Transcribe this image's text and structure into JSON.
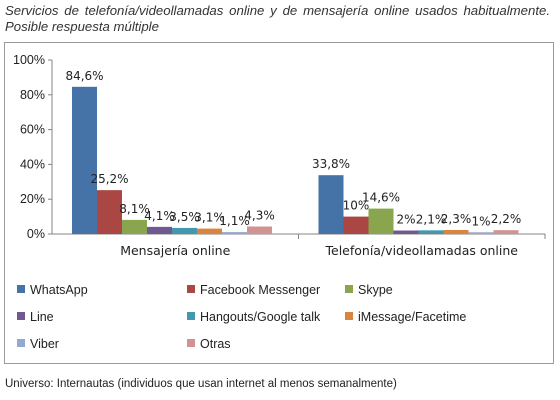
{
  "title": "Servicios de telefonía/videollamadas online y de mensajería online usados habitualmente. Posible respuesta múltiple",
  "footnote": "Universo: Internautas (individuos que usan internet al menos semanalmente)",
  "chart_data": {
    "type": "bar",
    "categories": [
      "Mensajería online",
      "Telefonía/videollamadas online"
    ],
    "ylim": [
      0,
      100
    ],
    "yticks": [
      "0%",
      "20%",
      "40%",
      "60%",
      "80%",
      "100%"
    ],
    "grid": false,
    "legend_position": "bottom",
    "series": [
      {
        "name": "WhatsApp",
        "color": "#4572a7",
        "values": [
          84.6,
          33.8
        ],
        "labels": [
          "84,6%",
          "33,8%"
        ]
      },
      {
        "name": "Facebook Messenger",
        "color": "#aa4643",
        "values": [
          25.2,
          10
        ],
        "labels": [
          "25,2%",
          "10%"
        ]
      },
      {
        "name": "Skype",
        "color": "#89a54e",
        "values": [
          8.1,
          14.6
        ],
        "labels": [
          "8,1%",
          "14,6%"
        ]
      },
      {
        "name": "Line",
        "color": "#71588f",
        "values": [
          4.1,
          2
        ],
        "labels": [
          "4,1%",
          "2%"
        ]
      },
      {
        "name": "Hangouts/Google talk",
        "color": "#4198af",
        "values": [
          3.5,
          2.1
        ],
        "labels": [
          "3,5%",
          "2,1%"
        ]
      },
      {
        "name": "iMessage/Facetime",
        "color": "#db843d",
        "values": [
          3.1,
          2.3
        ],
        "labels": [
          "3,1%",
          "2,3%"
        ]
      },
      {
        "name": "Viber",
        "color": "#93a9cf",
        "values": [
          1.1,
          1
        ],
        "labels": [
          "1,1%",
          "1%"
        ]
      },
      {
        "name": "Otras",
        "color": "#d19392",
        "values": [
          4.3,
          2.2
        ],
        "labels": [
          "4,3%",
          "2,2%"
        ]
      }
    ]
  }
}
